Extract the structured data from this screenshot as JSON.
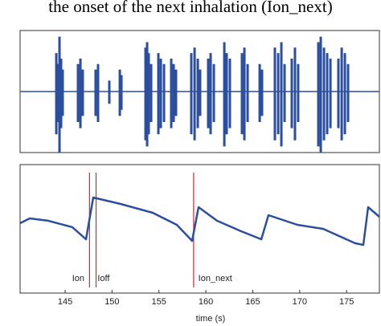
{
  "caption": "the onset of the next inhalation (Ion_next)",
  "chart_data": [
    {
      "type": "waveform",
      "color": "#2b4f9e",
      "xlim": [
        140.2,
        178.5
      ],
      "ylim": [
        -1,
        1
      ],
      "x": [
        144.06,
        144.23,
        144.4,
        144.57,
        144.74,
        146.37,
        146.63,
        146.88,
        148.25,
        148.51,
        149.71,
        150.83,
        151.0,
        153.57,
        153.74,
        153.91,
        154.17,
        154.94,
        155.2,
        155.54,
        156.31,
        156.57,
        156.82,
        158.45,
        158.8,
        159.14,
        159.39,
        160.25,
        160.51,
        160.85,
        161.97,
        162.22,
        162.56,
        163.85,
        164.11,
        164.45,
        165.74,
        165.99,
        167.36,
        167.71,
        168.05,
        168.39,
        169.16,
        169.5,
        169.84,
        171.99,
        172.25,
        172.59,
        172.93,
        173.28,
        174.13,
        174.48,
        174.82,
        175.16
      ],
      "values": [
        0.7,
        0.5,
        1.0,
        0.6,
        0.4,
        0.5,
        0.6,
        0.4,
        0.4,
        0.5,
        0.2,
        0.4,
        0.3,
        0.8,
        0.9,
        0.7,
        0.5,
        0.7,
        0.6,
        0.5,
        0.6,
        0.5,
        0.4,
        0.7,
        0.8,
        0.6,
        0.4,
        0.6,
        0.7,
        0.5,
        0.9,
        0.7,
        0.6,
        0.7,
        0.8,
        0.5,
        0.5,
        0.4,
        0.8,
        0.7,
        0.9,
        0.5,
        0.6,
        0.8,
        0.5,
        0.9,
        1.0,
        0.8,
        0.7,
        0.6,
        0.6,
        0.8,
        0.7,
        0.5
      ]
    },
    {
      "type": "line",
      "color": "#2b4f9e",
      "x_label": "time (s)",
      "xlim": [
        140.2,
        178.5
      ],
      "ylim": [
        0,
        1
      ],
      "xticks": [
        145,
        150,
        155,
        160,
        165,
        170,
        175
      ],
      "x": [
        140.2,
        141.23,
        143.2,
        145.77,
        147.23,
        148.0,
        150.91,
        154.34,
        156.91,
        158.54,
        159.22,
        161.19,
        163.76,
        165.91,
        166.68,
        169.76,
        172.5,
        175.9,
        176.79,
        177.3,
        178.5
      ],
      "values": [
        0.544,
        0.581,
        0.563,
        0.513,
        0.419,
        0.744,
        0.694,
        0.625,
        0.531,
        0.406,
        0.669,
        0.563,
        0.481,
        0.419,
        0.606,
        0.531,
        0.5,
        0.388,
        0.375,
        0.669,
        0.594
      ],
      "markers": {
        "color": "#d9252a",
        "labels": [
          "Ion",
          "Ioff",
          "Ion_next"
        ],
        "x": [
          147.6,
          148.3,
          158.7
        ]
      }
    }
  ]
}
